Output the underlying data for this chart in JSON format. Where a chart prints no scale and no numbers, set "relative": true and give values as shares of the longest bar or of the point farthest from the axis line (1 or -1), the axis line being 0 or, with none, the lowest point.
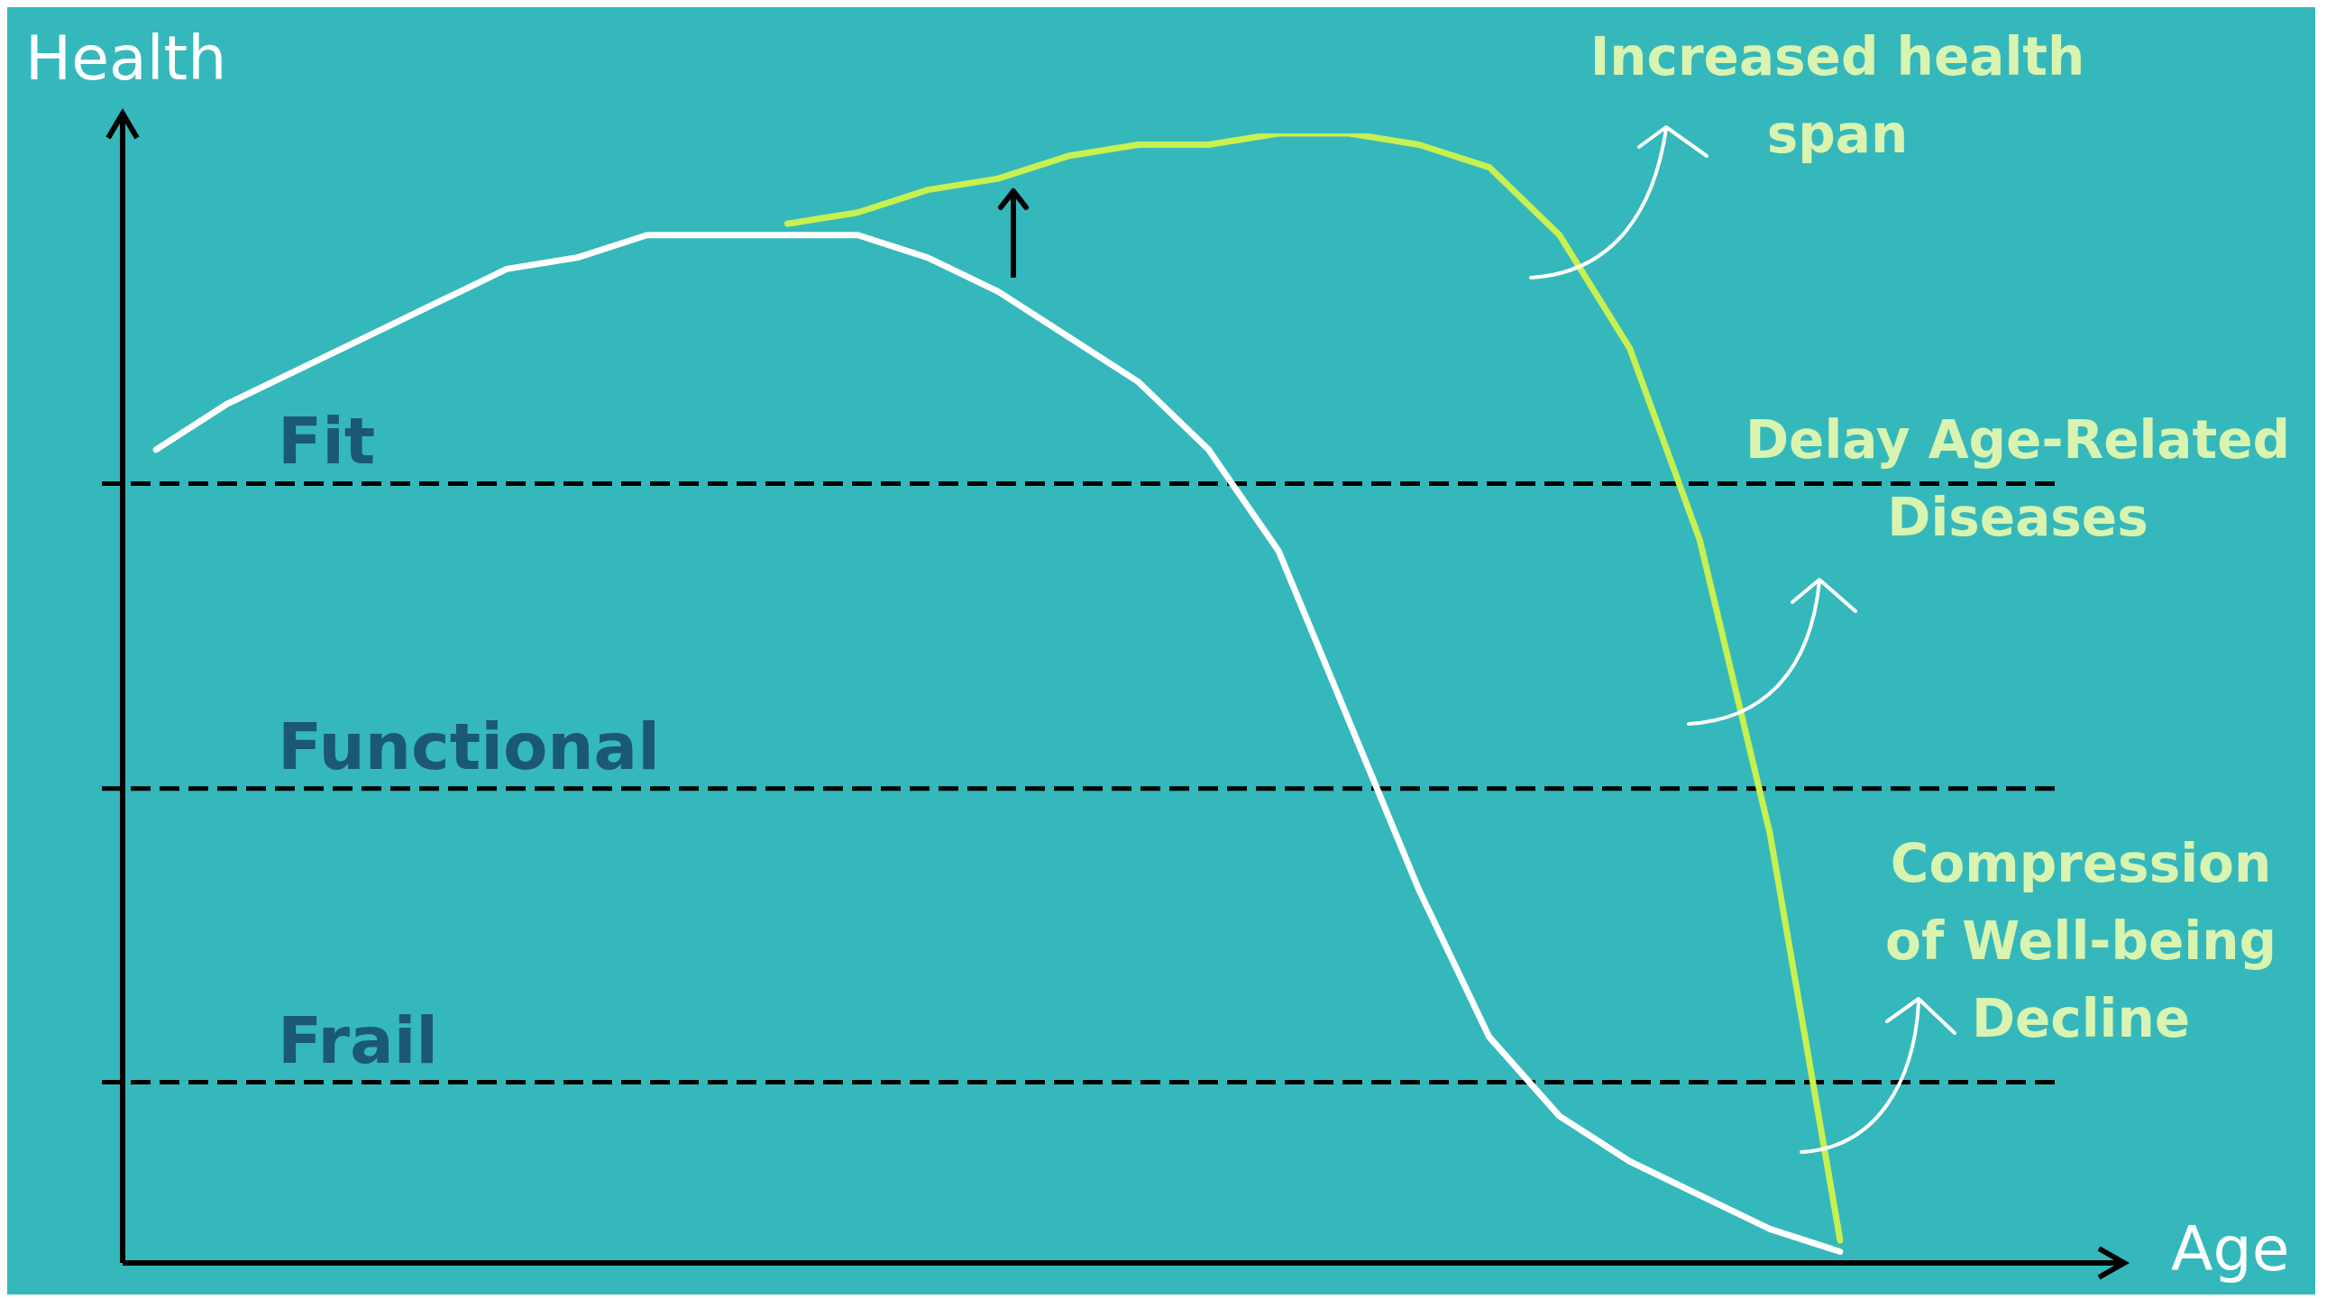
{
  "chart_data": {
    "type": "line",
    "relative": true,
    "xlabel": "Age",
    "ylabel": "Health",
    "tick_labels": false,
    "categories": [
      null,
      null,
      null,
      null,
      null,
      null,
      null,
      null,
      null,
      null,
      null,
      null,
      null,
      null,
      null,
      null,
      null,
      null,
      null,
      null,
      null,
      null,
      null,
      null,
      null
    ],
    "series": [
      {
        "color": "#ffffff",
        "values": [
          0.72,
          0.76,
          0.79,
          0.82,
          0.85,
          0.88,
          0.89,
          0.91,
          0.91,
          0.91,
          0.91,
          0.89,
          0.86,
          0.82,
          0.78,
          0.72,
          0.63,
          0.48,
          0.33,
          0.2,
          0.13,
          0.09,
          0.06,
          0.03,
          0.01
        ]
      },
      {
        "color": "#c8f051",
        "values": [
          null,
          null,
          null,
          null,
          null,
          null,
          null,
          null,
          null,
          0.92,
          0.93,
          0.95,
          0.96,
          0.98,
          0.99,
          0.99,
          1.0,
          1.0,
          0.99,
          0.97,
          0.91,
          0.81,
          0.64,
          0.38,
          0.02
        ]
      }
    ],
    "ref_lines": [
      {
        "axis": "y",
        "value": 0.69,
        "label": "Fit",
        "color": "#000000",
        "line_style": "dashed"
      },
      {
        "axis": "y",
        "value": 0.42,
        "label": "Functional",
        "color": "#000000",
        "line_style": "dashed"
      },
      {
        "axis": "y",
        "value": 0.16,
        "label": "Frail",
        "color": "#000000",
        "line_style": "dashed"
      }
    ],
    "annotations": [
      "Increased health span",
      "Delay Age-Related Diseases",
      "Compression of Well-being Decline"
    ]
  }
}
